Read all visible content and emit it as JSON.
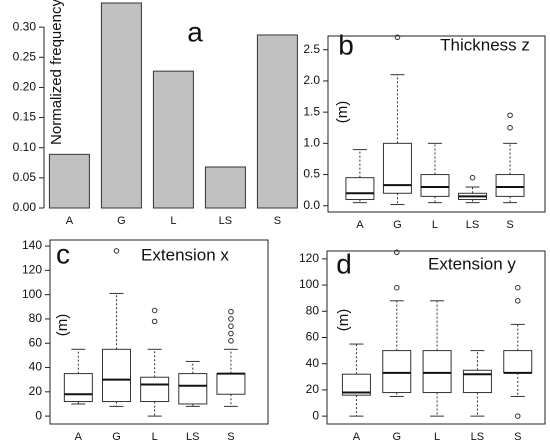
{
  "chart_data": [
    {
      "type": "bar",
      "annotation": "a",
      "ylabel": "Normalized frequency",
      "categories": [
        "A",
        "G",
        "L",
        "LS",
        "S"
      ],
      "values": [
        0.089,
        0.34,
        0.227,
        0.068,
        0.287
      ],
      "color": "#c0c0c0",
      "ylim": [
        0,
        0.34
      ],
      "yticks": [
        {
          "value": 0,
          "label": "0.00"
        },
        {
          "value": 0.05,
          "label": "0.05"
        },
        {
          "value": 0.1,
          "label": "0.10"
        },
        {
          "value": 0.15,
          "label": "0.15"
        },
        {
          "value": 0.2,
          "label": "0.20"
        },
        {
          "value": 0.25,
          "label": "0.25"
        },
        {
          "value": 0.3,
          "label": "0.30"
        }
      ]
    },
    {
      "type": "boxplot",
      "annotation": "b",
      "title": "Thickness z",
      "ylabel": "(m)",
      "categories": [
        "A",
        "G",
        "L",
        "LS",
        "S"
      ],
      "boxes": [
        {
          "whislo": 0.05,
          "q1": 0.1,
          "med": 0.2,
          "q3": 0.45,
          "whishi": 0.9,
          "fliers": []
        },
        {
          "whislo": 0.02,
          "q1": 0.2,
          "med": 0.33,
          "q3": 1.0,
          "whishi": 2.1,
          "fliers": [
            2.7
          ]
        },
        {
          "whislo": 0.05,
          "q1": 0.15,
          "med": 0.3,
          "q3": 0.5,
          "whishi": 1.0,
          "fliers": []
        },
        {
          "whislo": 0.05,
          "q1": 0.1,
          "med": 0.15,
          "q3": 0.2,
          "whishi": 0.3,
          "fliers": [
            0.45
          ]
        },
        {
          "whislo": 0.05,
          "q1": 0.15,
          "med": 0.3,
          "q3": 0.5,
          "whishi": 1.0,
          "fliers": [
            1.25,
            1.45
          ]
        }
      ],
      "ylim": [
        -0.1,
        2.72
      ],
      "yticks": [
        {
          "value": 0,
          "label": "0.0"
        },
        0.5,
        {
          "value": 1,
          "label": "1.0"
        },
        1.5,
        {
          "value": 2,
          "label": "2.0"
        },
        2.5
      ]
    },
    {
      "type": "boxplot",
      "annotation": "c",
      "title": "Extension x",
      "ylabel": "(m)",
      "categories": [
        "A",
        "G",
        "L",
        "LS",
        "S"
      ],
      "boxes": [
        {
          "whislo": 10,
          "q1": 12,
          "med": 18,
          "q3": 35,
          "whishi": 55,
          "fliers": []
        },
        {
          "whislo": 8,
          "q1": 12,
          "med": 30,
          "q3": 55,
          "whishi": 101,
          "fliers": [
            136
          ]
        },
        {
          "whislo": 0,
          "q1": 12,
          "med": 26,
          "q3": 32,
          "whishi": 55,
          "fliers": [
            78,
            87
          ]
        },
        {
          "whislo": 8,
          "q1": 10,
          "med": 25,
          "q3": 35,
          "whishi": 45,
          "fliers": []
        },
        {
          "whislo": 8,
          "q1": 18,
          "med": 35,
          "q3": 35,
          "whishi": 55,
          "fliers": [
            62,
            68,
            74,
            80,
            86
          ]
        }
      ],
      "ylim": [
        -6.5,
        145
      ],
      "yticks": [
        0,
        20,
        40,
        60,
        80,
        100,
        120,
        140
      ]
    },
    {
      "type": "boxplot",
      "annotation": "d",
      "title": "Extension y",
      "ylabel": "(m)",
      "categories": [
        "A",
        "G",
        "L",
        "LS",
        "S"
      ],
      "boxes": [
        {
          "whislo": 0,
          "q1": 16,
          "med": 18,
          "q3": 32,
          "whishi": 55,
          "fliers": []
        },
        {
          "whislo": 15,
          "q1": 18,
          "med": 33,
          "q3": 50,
          "whishi": 88,
          "fliers": [
            98,
            125
          ]
        },
        {
          "whislo": 0,
          "q1": 18,
          "med": 33,
          "q3": 50,
          "whishi": 88,
          "fliers": []
        },
        {
          "whislo": 0,
          "q1": 18,
          "med": 32,
          "q3": 35,
          "whishi": 50,
          "fliers": []
        },
        {
          "whislo": 15,
          "q1": 33,
          "med": 33,
          "q3": 50,
          "whishi": 70,
          "fliers": [
            0,
            88,
            98
          ]
        }
      ],
      "ylim": [
        -6,
        126
      ],
      "yticks": [
        0,
        20,
        40,
        60,
        80,
        100,
        120
      ]
    }
  ]
}
